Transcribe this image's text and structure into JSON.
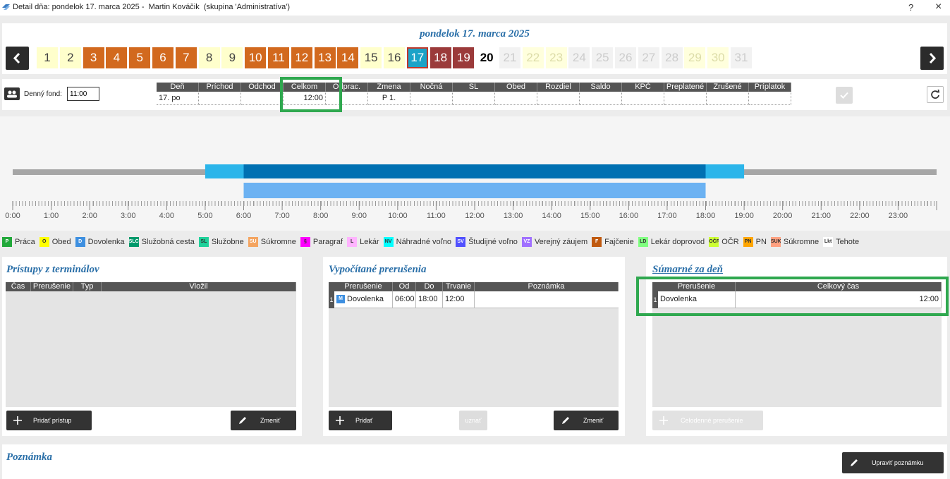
{
  "window": {
    "title": "Detail dňa: pondelok 17. marca 2025 -  Martin Kováčik  (skupina 'Administratíva')",
    "help": "?",
    "close": "×"
  },
  "calendar": {
    "title": "pondelok 17. marca 2025",
    "days": [
      {
        "label": "1",
        "background": "#ffffcc",
        "text": "#444444"
      },
      {
        "label": "2",
        "background": "#ffffcc",
        "text": "#444444"
      },
      {
        "label": "3",
        "background": "#d2691e",
        "text": "#ffffff"
      },
      {
        "label": "4",
        "background": "#d2691e",
        "text": "#ffffff"
      },
      {
        "label": "5",
        "background": "#d2691e",
        "text": "#ffffff"
      },
      {
        "label": "6",
        "background": "#d2691e",
        "text": "#ffffff"
      },
      {
        "label": "7",
        "background": "#d2691e",
        "text": "#ffffff"
      },
      {
        "label": "8",
        "background": "#ffffcc",
        "text": "#444444"
      },
      {
        "label": "9",
        "background": "#ffffcc",
        "text": "#444444"
      },
      {
        "label": "10",
        "background": "#d2691e",
        "text": "#ffffff"
      },
      {
        "label": "11",
        "background": "#d2691e",
        "text": "#ffffff"
      },
      {
        "label": "12",
        "background": "#d2691e",
        "text": "#ffffff"
      },
      {
        "label": "13",
        "background": "#d2691e",
        "text": "#ffffff"
      },
      {
        "label": "14",
        "background": "#d2691e",
        "text": "#ffffff"
      },
      {
        "label": "15",
        "background": "#ffffcc",
        "text": "#444444"
      },
      {
        "label": "16",
        "background": "#ffffcc",
        "text": "#444444"
      },
      {
        "label": "17",
        "background": "#1ba3c8",
        "text": "#ffffff",
        "border": "#c0392b"
      },
      {
        "label": "18",
        "background": "#9b3a3a",
        "text": "#ffffff"
      },
      {
        "label": "19",
        "background": "#9b3a3a",
        "text": "#ffffff"
      },
      {
        "label": "20",
        "background": "#ffffff",
        "text": "#000000"
      },
      {
        "label": "21",
        "background": "#f2f2f2",
        "text": "#cccccc"
      },
      {
        "label": "22",
        "background": "#ffffdd",
        "text": "#dcdca8"
      },
      {
        "label": "23",
        "background": "#ffffdd",
        "text": "#dcdca8"
      },
      {
        "label": "24",
        "background": "#f2f2f2",
        "text": "#cccccc"
      },
      {
        "label": "25",
        "background": "#f2f2f2",
        "text": "#cccccc"
      },
      {
        "label": "26",
        "background": "#f2f2f2",
        "text": "#cccccc"
      },
      {
        "label": "27",
        "background": "#f2f2f2",
        "text": "#cccccc"
      },
      {
        "label": "28",
        "background": "#f2f2f2",
        "text": "#cccccc"
      },
      {
        "label": "29",
        "background": "#ffffdd",
        "text": "#dcdca8"
      },
      {
        "label": "30",
        "background": "#ffffdd",
        "text": "#dcdca8"
      },
      {
        "label": "31",
        "background": "#f2f2f2",
        "text": "#cccccc"
      }
    ]
  },
  "fund": {
    "label": "Denný fond:",
    "value": "11:00"
  },
  "day_table": {
    "columns": [
      {
        "header": "Deň",
        "value": "17. po"
      },
      {
        "header": "Príchod"
      },
      {
        "header": "Odchod"
      },
      {
        "header": "Celkom",
        "value": "12:00"
      },
      {
        "header": "Odprac."
      },
      {
        "header": "Zmena",
        "value": "P 1."
      },
      {
        "header": "Nočná"
      },
      {
        "header": "SL"
      },
      {
        "header": "Obed"
      },
      {
        "header": "Rozdiel"
      },
      {
        "header": "Saldo"
      },
      {
        "header": "KPČ"
      },
      {
        "header": "Preplatené"
      },
      {
        "header": "Zrušené"
      },
      {
        "header": "Príplatok"
      }
    ]
  },
  "timeline": {
    "xlim": [
      0,
      24
    ],
    "ticks": [
      {
        "value": 0,
        "label": "0:00"
      },
      {
        "value": 1,
        "label": "1:00"
      },
      {
        "value": 2,
        "label": "2:00"
      },
      {
        "value": 3,
        "label": "3:00"
      },
      {
        "value": 4,
        "label": "4:00"
      },
      {
        "value": 5,
        "label": "5:00"
      },
      {
        "value": 6,
        "label": "6:00"
      },
      {
        "value": 7,
        "label": "7:00"
      },
      {
        "value": 8,
        "label": "8:00"
      },
      {
        "value": 9,
        "label": "9:00"
      },
      {
        "value": 10,
        "label": "10:00"
      },
      {
        "value": 11,
        "label": "11:00"
      },
      {
        "value": 12,
        "label": "12:00"
      },
      {
        "value": 13,
        "label": "13:00"
      },
      {
        "value": 14,
        "label": "14:00"
      },
      {
        "value": 15,
        "label": "15:00"
      },
      {
        "value": 16,
        "label": "16:00"
      },
      {
        "value": 17,
        "label": "17:00"
      },
      {
        "value": 18,
        "label": "18:00"
      },
      {
        "value": 19,
        "label": "19:00"
      },
      {
        "value": 20,
        "label": "20:00"
      },
      {
        "value": 21,
        "label": "21:00"
      },
      {
        "value": 22,
        "label": "22:00"
      },
      {
        "value": 23,
        "label": "23:00"
      }
    ],
    "base": {
      "start": 0,
      "end": 24,
      "color": "#a6a6a6"
    },
    "attendance": [
      {
        "start": 5,
        "end": 19,
        "color": "#2bb5ea"
      },
      {
        "start": 6,
        "end": 18,
        "color": "#0070b2"
      }
    ],
    "interruptions": [
      {
        "start": 6,
        "end": 18,
        "color": "#6cb2f2"
      }
    ]
  },
  "legend": [
    {
      "code": "P",
      "label": "Práca",
      "color": "#22a83a",
      "code_color": "#ffffff"
    },
    {
      "code": "O",
      "label": "Obed",
      "color": "#ffff00",
      "code_color": "#333333"
    },
    {
      "code": "D",
      "label": "Dovolenka",
      "color": "#3d8fe0",
      "code_color": "#ffffff"
    },
    {
      "code": "SLC",
      "label": "Služobná cesta",
      "color": "#00996b",
      "code_color": "#ffffff"
    },
    {
      "code": "SL",
      "label": "Služobne",
      "color": "#1fd19a",
      "code_color": "#333333"
    },
    {
      "code": "SU",
      "label": "Súkromne",
      "color": "#f4a460",
      "code_color": "#ffffff"
    },
    {
      "code": "§",
      "label": "Paragraf",
      "color": "#ff00ff",
      "code_color": "#333333"
    },
    {
      "code": "L",
      "label": "Lekár",
      "color": "#ffb3ff",
      "code_color": "#333333"
    },
    {
      "code": "NV",
      "label": "Náhradné voľno",
      "color": "#00ffff",
      "code_color": "#333333"
    },
    {
      "code": "SV",
      "label": "Študijné voľno",
      "color": "#5050ff",
      "code_color": "#ffffff"
    },
    {
      "code": "VZ",
      "label": "Verejný záujem",
      "color": "#a070ff",
      "code_color": "#ffffff"
    },
    {
      "code": "F",
      "label": "Fajčenie",
      "color": "#c05a10",
      "code_color": "#ffffff"
    },
    {
      "code": "LD",
      "label": "Lekár doprovod",
      "color": "#80ff80",
      "code_color": "#333333"
    },
    {
      "code": "OČR",
      "label": "OČR",
      "color": "#ccff33",
      "code_color": "#333333"
    },
    {
      "code": "PN",
      "label": "PN",
      "color": "#ffa500",
      "code_color": "#333333"
    },
    {
      "code": "SUK",
      "label": "Súkromne",
      "color": "#ffa080",
      "code_color": "#333333"
    },
    {
      "code": "Lkt",
      "label": "Tehote",
      "color": "#ffffff",
      "code_color": "#333333"
    }
  ],
  "terminal_access": {
    "title": "Prístupy z terminálov",
    "columns": [
      "Čas",
      "Prerušenie",
      "Typ",
      "Vložil"
    ],
    "buttons": {
      "add": "Pridať prístup",
      "edit": "Zmeniť"
    }
  },
  "computed": {
    "title": "Vypočítané prerušenia",
    "columns": [
      "Prerušenie",
      "Od",
      "Do",
      "Trvanie",
      "Poznámka"
    ],
    "rows": [
      {
        "number": "1",
        "icon": "M",
        "cells": [
          "Dovolenka",
          "06:00",
          "18:00",
          "12:00"
        ]
      }
    ],
    "buttons": {
      "add": "Pridať",
      "approve": "uznať",
      "edit": "Zmeniť"
    }
  },
  "daily_summary": {
    "title": "Súmarné za deň",
    "columns": [
      "Prerušenie",
      "Celkový čas"
    ],
    "rows": [
      {
        "number": "1",
        "cells": [
          "Dovolenka",
          "12:00"
        ]
      }
    ],
    "buttons": {
      "full_day": "Celodenné prerušenie"
    }
  },
  "note": {
    "title": "Poznámka",
    "button": "Upraviť poznámku"
  }
}
